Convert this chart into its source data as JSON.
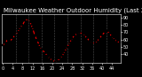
{
  "title": "Milwaukee Weather Outdoor Humidity (Last 24 Hours)",
  "y_values": [
    52,
    55,
    60,
    58,
    62,
    66,
    70,
    76,
    80,
    86,
    88,
    84,
    76,
    65,
    58,
    50,
    46,
    42,
    38,
    34,
    32,
    30,
    31,
    34,
    38,
    44,
    50,
    56,
    62,
    66,
    68,
    70,
    68,
    65,
    62,
    58,
    56,
    55,
    58,
    62,
    66,
    70,
    72,
    68,
    64,
    60,
    58,
    56
  ],
  "ylim": [
    28,
    95
  ],
  "yticks": [
    40,
    50,
    60,
    70,
    80,
    90
  ],
  "ytick_labels": [
    "40",
    "50",
    "60",
    "70",
    "80",
    "90"
  ],
  "line_color": "#ff0000",
  "marker_color": "#000000",
  "bg_color": "#000000",
  "plot_bg_color": "#000000",
  "grid_color": "#666666",
  "text_color": "#ffffff",
  "title_fontsize": 5.0,
  "tick_fontsize": 3.5,
  "line_width": 0.8,
  "marker_size": 2.0,
  "vgrid_count": 10
}
